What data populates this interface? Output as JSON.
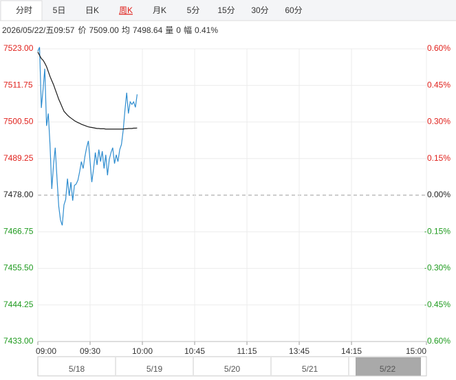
{
  "tabs": [
    "分时",
    "5日",
    "日K",
    "周K",
    "月K",
    "5分",
    "15分",
    "30分",
    "60分"
  ],
  "active_tab": 0,
  "marked_tab": 3,
  "info": [
    "2026/05/22/五09:57",
    "价",
    "7509.00",
    "均",
    "7498.64",
    "量",
    "0",
    "幅",
    "0.41%"
  ],
  "chart_data": {
    "type": "line",
    "x": [
      0,
      1,
      2,
      3,
      4,
      5,
      6,
      7,
      8,
      9,
      10,
      11,
      12,
      13,
      14,
      15,
      16,
      17,
      18,
      19,
      20,
      21,
      22,
      23,
      24,
      25,
      26,
      27,
      28,
      29,
      30,
      31,
      32,
      33,
      34,
      35,
      36,
      37,
      38,
      39,
      40,
      41,
      42,
      43,
      44,
      45,
      46,
      47,
      48,
      49,
      50,
      51,
      52,
      53,
      54,
      55,
      56,
      57
    ],
    "series": [
      {
        "name": "价",
        "color": "#2d8ccf",
        "values": [
          7522.2,
          7523.5,
          7504.8,
          7510.5,
          7516.9,
          7499.3,
          7503.1,
          7493.6,
          7479.9,
          7487.3,
          7492.6,
          7483.1,
          7474.6,
          7470.4,
          7468.7,
          7475.0,
          7476.7,
          7483.1,
          7477.8,
          7482.0,
          7476.3,
          7481.0,
          7481.4,
          7482.6,
          7485.2,
          7488.3,
          7486.2,
          7489.8,
          7492.6,
          7494.7,
          7488.3,
          7482.0,
          7486.2,
          7491.1,
          7487.3,
          7492.0,
          7488.3,
          7491.5,
          7486.2,
          7490.4,
          7484.1,
          7489.0,
          7491.1,
          7492.6,
          7487.7,
          7490.4,
          7488.3,
          7492.0,
          7493.6,
          7497.9,
          7504.2,
          7509.5,
          7503.1,
          7506.7,
          7505.9,
          7506.7,
          7505.0,
          7509.0
        ]
      },
      {
        "name": "均",
        "color": "#1a1a1a",
        "values": [
          7522.0,
          7521,
          7520,
          7519.5,
          7518.6,
          7517.5,
          7516,
          7514.5,
          7513.2,
          7512,
          7510.5,
          7509,
          7507.5,
          7506.3,
          7505,
          7503.8,
          7503.2,
          7502.6,
          7502.1,
          7501.7,
          7501.3,
          7500.9,
          7500.6,
          7500.3,
          7500.1,
          7499.8,
          7499.6,
          7499.4,
          7499.2,
          7499.0,
          7498.9,
          7498.8,
          7498.7,
          7498.6,
          7498.5,
          7498.5,
          7498.4,
          7498.4,
          7498.4,
          7498.3,
          7498.3,
          7498.3,
          7498.3,
          7498.3,
          7498.3,
          7498.3,
          7498.3,
          7498.3,
          7498.3,
          7498.3,
          7498.4,
          7498.4,
          7498.5,
          7498.5,
          7498.5,
          7498.6,
          7498.6,
          7498.64
        ]
      }
    ],
    "xlim": [
      0,
      223
    ],
    "xticks": [
      {
        "value": 0,
        "label": "09:00"
      },
      {
        "value": 30,
        "label": "09:30"
      },
      {
        "value": 60,
        "label": "10:00"
      },
      {
        "value": 90,
        "label": "10:45"
      },
      {
        "value": 120,
        "label": "11:15"
      },
      {
        "value": 150,
        "label": "13:45"
      },
      {
        "value": 180,
        "label": "14:15"
      },
      {
        "value": 223,
        "label": "15:00"
      }
    ],
    "ylim": [
      7433,
      7523
    ],
    "yticks": [
      {
        "value": 7523,
        "label": "7523.00"
      },
      {
        "value": 7511.75,
        "label": "7511.75"
      },
      {
        "value": 7500.5,
        "label": "7500.50"
      },
      {
        "value": 7489.25,
        "label": "7489.25"
      },
      {
        "value": 7478,
        "label": "7478.00"
      },
      {
        "value": 7466.75,
        "label": "7466.75"
      },
      {
        "value": 7455.5,
        "label": "7455.50"
      },
      {
        "value": 7444.25,
        "label": "7444.25"
      },
      {
        "value": 7433,
        "label": "7433.00"
      }
    ],
    "y2lim": [
      -0.6,
      0.6
    ],
    "y2ticks": [
      {
        "value": 0.6,
        "label": "0.60%"
      },
      {
        "value": 0.45,
        "label": "0.45%"
      },
      {
        "value": 0.3,
        "label": "0.30%"
      },
      {
        "value": 0.15,
        "label": "0.15%"
      },
      {
        "value": 0,
        "label": "0.00%"
      },
      {
        "value": -0.15,
        "label": "-0.15%"
      },
      {
        "value": -0.3,
        "label": "-0.30%"
      },
      {
        "value": -0.45,
        "label": "-0.45%"
      },
      {
        "value": -0.6,
        "label": "-0.60%"
      }
    ],
    "grid": true,
    "up_color": "#e0201b",
    "down_color": "#1e9a1e",
    "navigator": [
      "5/18",
      "5/19",
      "5/20",
      "5/21",
      "5/22"
    ]
  }
}
